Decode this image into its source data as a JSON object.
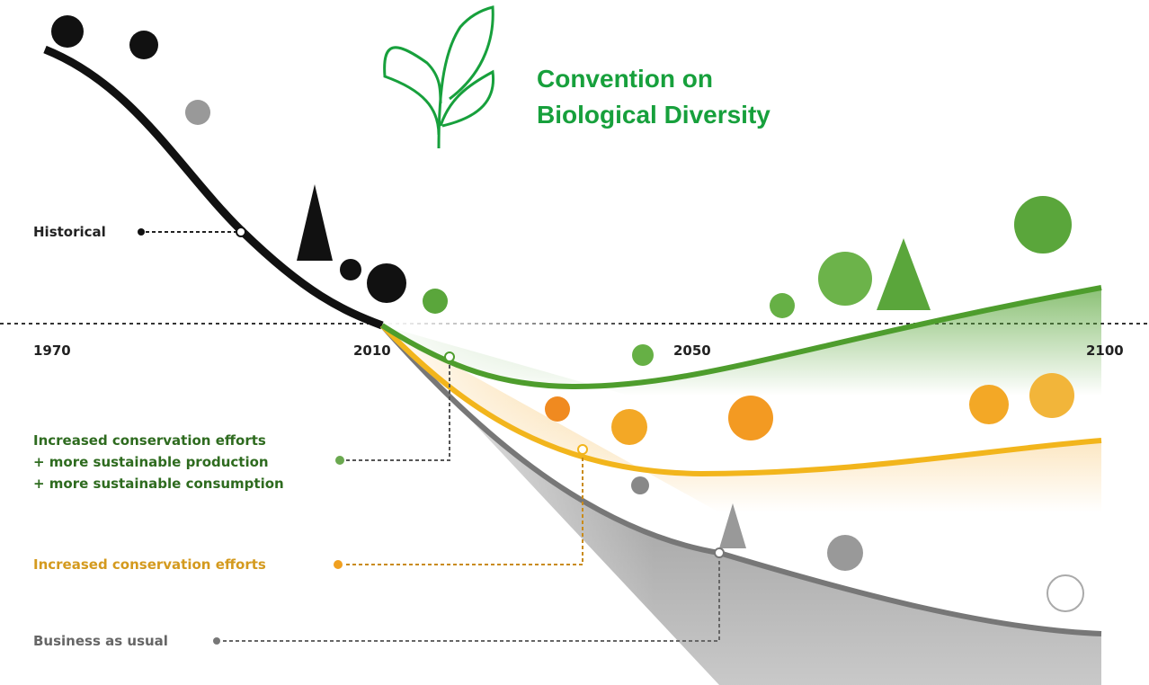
{
  "logo": {
    "lines": [
      "Convention on",
      "Biological Diversity"
    ]
  },
  "timeline": {
    "years": [
      "1970",
      "2010",
      "2050",
      "2100"
    ]
  },
  "scenarios": [
    {
      "lines": [
        "Historical"
      ]
    },
    {
      "lines": [
        "Increased conservation efforts",
        "+ more sustainable production",
        "+ more sustainable consumption"
      ]
    },
    {
      "lines": [
        "Increased conservation efforts"
      ]
    },
    {
      "lines": [
        "Business as usual"
      ]
    }
  ]
}
